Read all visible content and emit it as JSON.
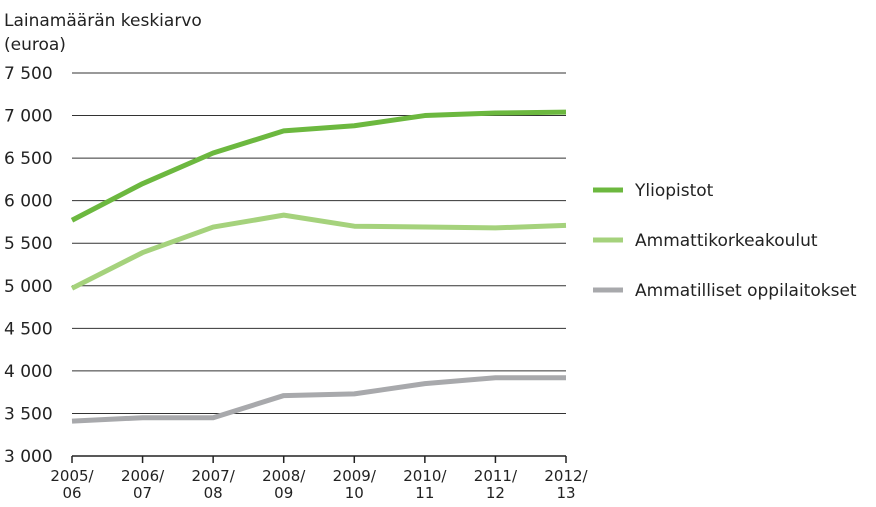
{
  "chart_data": {
    "type": "line",
    "ylabel": [
      "Lainamäärän keskiarvo",
      "(euroa)"
    ],
    "categories": [
      "2005/\n06",
      "2006/\n07",
      "2007/\n08",
      "2008/\n09",
      "2009/\n10",
      "2010/\n11",
      "2011/\n12",
      "2012/\n13"
    ],
    "series": [
      {
        "name": "Yliopistot",
        "color": "#6cb83f",
        "values": [
          5770,
          6200,
          6560,
          6820,
          6880,
          7000,
          7030,
          7040
        ]
      },
      {
        "name": "Ammattikorkeakoulut",
        "color": "#a5d27c",
        "values": [
          4970,
          5390,
          5690,
          5830,
          5700,
          5690,
          5680,
          5710
        ]
      },
      {
        "name": "Ammatilliset oppilaitokset",
        "color": "#a8a9ac",
        "values": [
          3410,
          3450,
          3450,
          3710,
          3730,
          3850,
          3920,
          3920
        ]
      }
    ],
    "ylim": [
      3000,
      7500
    ],
    "yticks": [
      {
        "value": 3000,
        "label": "3 000"
      },
      {
        "value": 3500,
        "label": "3 500"
      },
      {
        "value": 4000,
        "label": "4 000"
      },
      {
        "value": 4500,
        "label": "4 500"
      },
      {
        "value": 5000,
        "label": "5 000"
      },
      {
        "value": 5500,
        "label": "5 500"
      },
      {
        "value": 6000,
        "label": "6 000"
      },
      {
        "value": 6500,
        "label": "6 500"
      },
      {
        "value": 7000,
        "label": "7 000"
      },
      {
        "value": 7500,
        "label": "7 500"
      }
    ],
    "grid": true,
    "legend": "right"
  }
}
